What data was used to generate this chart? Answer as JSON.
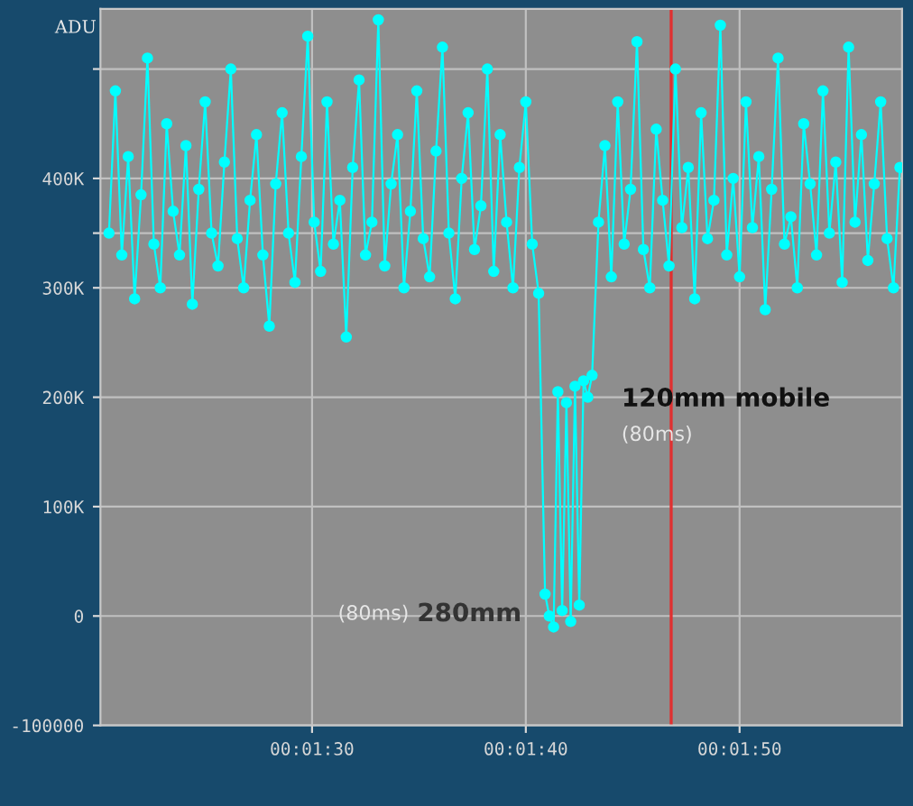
{
  "chart_data": {
    "type": "line",
    "ylabel": "ADU",
    "series": [
      {
        "color": "#00ffff",
        "x": [
          80.5,
          80.8,
          81.1,
          81.4,
          81.7,
          82,
          82.3,
          82.6,
          82.9,
          83.2,
          83.5,
          83.8,
          84.1,
          84.4,
          84.7,
          85,
          85.3,
          85.6,
          85.9,
          86.2,
          86.5,
          86.8,
          87.1,
          87.4,
          87.7,
          88,
          88.3,
          88.6,
          88.9,
          89.2,
          89.5,
          89.8,
          90.1,
          90.4,
          90.7,
          91,
          91.3,
          91.6,
          91.9,
          92.2,
          92.5,
          92.8,
          93.1,
          93.4,
          93.7,
          94,
          94.3,
          94.6,
          94.9,
          95.2,
          95.5,
          95.8,
          96.1,
          96.4,
          96.7,
          97,
          97.3,
          97.6,
          97.9,
          98.2,
          98.5,
          98.8,
          99.1,
          99.4,
          99.7,
          100,
          100.3,
          100.6,
          100.9,
          101.1,
          101.3,
          101.5,
          101.7,
          101.9,
          102.1,
          102.3,
          102.5,
          102.7,
          102.9,
          103.1,
          103.4,
          103.7,
          104,
          104.3,
          104.6,
          104.9,
          105.2,
          105.5,
          105.8,
          106.1,
          106.4,
          106.7,
          107,
          107.3,
          107.6,
          107.9,
          108.2,
          108.5,
          108.8,
          109.1,
          109.4,
          109.7,
          110,
          110.3,
          110.6,
          110.9,
          111.2,
          111.5,
          111.8,
          112.1,
          112.4,
          112.7,
          113,
          113.3,
          113.6,
          113.9,
          114.2,
          114.5,
          114.8,
          115.1,
          115.4,
          115.7,
          116,
          116.3,
          116.6,
          116.9,
          117.2,
          117.5
        ],
        "values": [
          350000,
          480000,
          330000,
          420000,
          290000,
          385000,
          510000,
          340000,
          300000,
          450000,
          370000,
          330000,
          430000,
          285000,
          390000,
          470000,
          350000,
          320000,
          415000,
          500000,
          345000,
          300000,
          380000,
          440000,
          330000,
          265000,
          395000,
          460000,
          350000,
          305000,
          420000,
          530000,
          360000,
          315000,
          470000,
          340000,
          380000,
          255000,
          410000,
          490000,
          330000,
          360000,
          545000,
          320000,
          395000,
          440000,
          300000,
          370000,
          480000,
          345000,
          310000,
          425000,
          520000,
          350000,
          290000,
          400000,
          460000,
          335000,
          375000,
          500000,
          315000,
          440000,
          360000,
          300000,
          410000,
          470000,
          340000,
          295000,
          20000,
          0,
          -10000,
          205000,
          5000,
          195000,
          -5000,
          210000,
          10000,
          215000,
          200000,
          220000,
          360000,
          430000,
          310000,
          470000,
          340000,
          390000,
          525000,
          335000,
          300000,
          445000,
          380000,
          320000,
          500000,
          355000,
          410000,
          290000,
          460000,
          345000,
          380000,
          540000,
          330000,
          400000,
          310000,
          470000,
          355000,
          420000,
          280000,
          390000,
          510000,
          340000,
          365000,
          300000,
          450000,
          395000,
          330000,
          480000,
          350000,
          415000,
          305000,
          520000,
          360000,
          440000,
          325000,
          395000,
          470000,
          345000,
          300000,
          410000
        ]
      }
    ],
    "marker": "circle",
    "line_style": "solid",
    "grid": true,
    "legend": false,
    "xlim": [
      80.1,
      117.6
    ],
    "xticks": [
      {
        "value": 90,
        "label": "00:01:30"
      },
      {
        "value": 100,
        "label": "00:01:40"
      },
      {
        "value": 110,
        "label": "00:01:50"
      }
    ],
    "ylim": [
      -100000,
      555000
    ],
    "yticks": [
      {
        "value": -100000,
        "label": "-100000"
      },
      0,
      {
        "value": 100000,
        "label": "100K"
      },
      {
        "value": 200000,
        "label": "200K"
      },
      {
        "value": 300000,
        "label": "300K"
      },
      {
        "value": 350000,
        "label": null
      },
      {
        "value": 400000,
        "label": "400K"
      },
      {
        "value": 500000,
        "label": null
      }
    ],
    "ref_lines": [
      {
        "axis": "x",
        "value": 106.8,
        "color": "#e03030",
        "line_style": "solid"
      }
    ],
    "annotations": [
      "120mm mobile",
      "(80ms)",
      "(80ms)",
      "280mm"
    ]
  }
}
